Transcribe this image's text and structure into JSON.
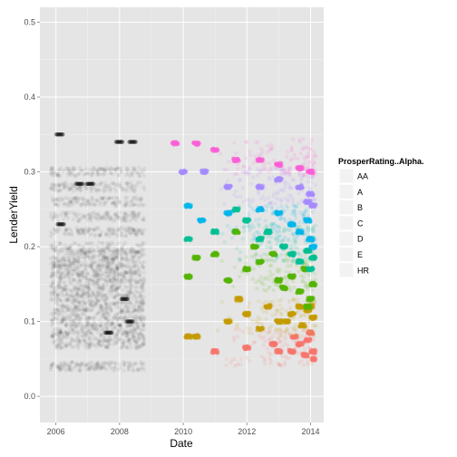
{
  "chart_data": {
    "type": "scatter",
    "xlabel": "Date",
    "ylabel": "LenderYield",
    "x_range": [
      "2005-07-01",
      "2014-06-01"
    ],
    "ylim": [
      -0.035,
      0.52
    ],
    "x_ticks": [
      {
        "value": "2006-01-01",
        "label": "2006"
      },
      {
        "value": "2008-01-01",
        "label": "2008"
      },
      {
        "value": "2010-01-01",
        "label": "2010"
      },
      {
        "value": "2012-01-01",
        "label": "2012"
      },
      {
        "value": "2014-01-01",
        "label": "2014"
      }
    ],
    "y_ticks": [
      {
        "value": 0.0,
        "label": "0.0"
      },
      {
        "value": 0.1,
        "label": "0.1"
      },
      {
        "value": 0.2,
        "label": "0.2"
      },
      {
        "value": 0.3,
        "label": "0.3"
      },
      {
        "value": 0.4,
        "label": "0.4"
      },
      {
        "value": 0.5,
        "label": "0.5"
      }
    ],
    "grid": true,
    "legend": {
      "title": "ProsperRating..Alpha.",
      "placement": "right",
      "entries": [
        "AA",
        "A",
        "B",
        "C",
        "D",
        "E",
        "HR"
      ]
    },
    "series": [
      {
        "rating": "none",
        "color": "#000000",
        "opacity": 0.05,
        "date_range": [
          "2005-11-01",
          "2008-10-15"
        ],
        "yield_levels": [
          0.04,
          0.07,
          0.08,
          0.09,
          0.1,
          0.11,
          0.12,
          0.13,
          0.14,
          0.15,
          0.16,
          0.17,
          0.18,
          0.19,
          0.2,
          0.22,
          0.24,
          0.26,
          0.28,
          0.3
        ],
        "highlights": [
          {
            "x": "2006-10-01",
            "y": 0.284
          },
          {
            "x": "2007-02-01",
            "y": 0.284
          },
          {
            "x": "2008-01-01",
            "y": 0.34
          },
          {
            "x": "2008-06-01",
            "y": 0.34
          },
          {
            "x": "2008-03-01",
            "y": 0.13
          },
          {
            "x": "2008-05-01",
            "y": 0.1
          },
          {
            "x": "2006-02-15",
            "y": 0.35
          },
          {
            "x": "2006-03-01",
            "y": 0.23
          },
          {
            "x": "2007-09-01",
            "y": 0.085
          }
        ]
      },
      {
        "rating": "AA",
        "color": "#f8766d",
        "date_range": [
          "2009-08-01",
          "2014-03-01"
        ],
        "points": [
          {
            "x": "2011-01-01",
            "y": 0.06
          },
          {
            "x": "2012-01-01",
            "y": 0.065
          },
          {
            "x": "2013-01-01",
            "y": 0.06
          },
          {
            "x": "2013-06-01",
            "y": 0.06
          },
          {
            "x": "2013-09-01",
            "y": 0.07
          },
          {
            "x": "2013-12-01",
            "y": 0.075
          },
          {
            "x": "2014-01-01",
            "y": 0.085
          },
          {
            "x": "2014-02-01",
            "y": 0.06
          },
          {
            "x": "2013-11-01",
            "y": 0.055
          },
          {
            "x": "2014-02-15",
            "y": 0.05
          },
          {
            "x": "2013-07-01",
            "y": 0.08
          },
          {
            "x": "2012-11-01",
            "y": 0.07
          }
        ]
      },
      {
        "rating": "A",
        "color": "#c49a00",
        "date_range": [
          "2009-08-01",
          "2014-03-01"
        ],
        "points": [
          {
            "x": "2010-03-01",
            "y": 0.08
          },
          {
            "x": "2010-06-01",
            "y": 0.08
          },
          {
            "x": "2011-06-01",
            "y": 0.1
          },
          {
            "x": "2012-01-01",
            "y": 0.11
          },
          {
            "x": "2012-06-01",
            "y": 0.09
          },
          {
            "x": "2013-01-01",
            "y": 0.1
          },
          {
            "x": "2013-06-01",
            "y": 0.11
          },
          {
            "x": "2013-09-01",
            "y": 0.12
          },
          {
            "x": "2013-12-01",
            "y": 0.115
          },
          {
            "x": "2014-01-01",
            "y": 0.12
          },
          {
            "x": "2014-02-01",
            "y": 0.105
          },
          {
            "x": "2013-10-01",
            "y": 0.095
          },
          {
            "x": "2013-04-01",
            "y": 0.1
          },
          {
            "x": "2012-09-01",
            "y": 0.12
          },
          {
            "x": "2011-10-01",
            "y": 0.13
          }
        ]
      },
      {
        "rating": "B",
        "color": "#53b400",
        "date_range": [
          "2009-08-01",
          "2014-03-01"
        ],
        "points": [
          {
            "x": "2010-03-01",
            "y": 0.16
          },
          {
            "x": "2010-06-01",
            "y": 0.185
          },
          {
            "x": "2011-01-01",
            "y": 0.19
          },
          {
            "x": "2011-06-01",
            "y": 0.155
          },
          {
            "x": "2012-01-01",
            "y": 0.17
          },
          {
            "x": "2012-06-01",
            "y": 0.18
          },
          {
            "x": "2013-01-01",
            "y": 0.155
          },
          {
            "x": "2013-06-01",
            "y": 0.16
          },
          {
            "x": "2013-09-01",
            "y": 0.14
          },
          {
            "x": "2014-01-01",
            "y": 0.13
          },
          {
            "x": "2014-02-01",
            "y": 0.15
          },
          {
            "x": "2013-12-01",
            "y": 0.12
          },
          {
            "x": "2013-11-01",
            "y": 0.17
          },
          {
            "x": "2012-04-01",
            "y": 0.2
          },
          {
            "x": "2011-09-01",
            "y": 0.22
          },
          {
            "x": "2012-11-01",
            "y": 0.19
          },
          {
            "x": "2013-03-01",
            "y": 0.145
          }
        ]
      },
      {
        "rating": "C",
        "color": "#00c094",
        "date_range": [
          "2009-08-01",
          "2014-03-01"
        ],
        "points": [
          {
            "x": "2010-03-01",
            "y": 0.21
          },
          {
            "x": "2011-01-01",
            "y": 0.22
          },
          {
            "x": "2011-09-01",
            "y": 0.25
          },
          {
            "x": "2012-01-01",
            "y": 0.235
          },
          {
            "x": "2012-09-01",
            "y": 0.22
          },
          {
            "x": "2013-03-01",
            "y": 0.2
          },
          {
            "x": "2013-06-01",
            "y": 0.19
          },
          {
            "x": "2013-09-01",
            "y": 0.18
          },
          {
            "x": "2014-01-01",
            "y": 0.17
          },
          {
            "x": "2014-02-01",
            "y": 0.185
          },
          {
            "x": "2013-12-01",
            "y": 0.195
          },
          {
            "x": "2012-06-01",
            "y": 0.21
          }
        ]
      },
      {
        "rating": "D",
        "color": "#00b6eb",
        "date_range": [
          "2009-08-01",
          "2014-03-01"
        ],
        "points": [
          {
            "x": "2010-03-01",
            "y": 0.255
          },
          {
            "x": "2010-08-01",
            "y": 0.235
          },
          {
            "x": "2011-06-01",
            "y": 0.245
          },
          {
            "x": "2012-06-01",
            "y": 0.25
          },
          {
            "x": "2013-01-01",
            "y": 0.245
          },
          {
            "x": "2013-06-01",
            "y": 0.23
          },
          {
            "x": "2013-09-01",
            "y": 0.22
          },
          {
            "x": "2014-01-01",
            "y": 0.21
          },
          {
            "x": "2014-02-01",
            "y": 0.2
          },
          {
            "x": "2013-12-01",
            "y": 0.235
          }
        ]
      },
      {
        "rating": "E",
        "color": "#a58aff",
        "date_range": [
          "2009-08-01",
          "2014-03-01"
        ],
        "points": [
          {
            "x": "2010-01-01",
            "y": 0.3
          },
          {
            "x": "2010-09-01",
            "y": 0.3
          },
          {
            "x": "2011-06-01",
            "y": 0.28
          },
          {
            "x": "2012-06-01",
            "y": 0.28
          },
          {
            "x": "2013-01-01",
            "y": 0.29
          },
          {
            "x": "2013-09-01",
            "y": 0.28
          },
          {
            "x": "2014-01-01",
            "y": 0.27
          },
          {
            "x": "2014-02-01",
            "y": 0.255
          },
          {
            "x": "2013-12-01",
            "y": 0.26
          }
        ]
      },
      {
        "rating": "HR",
        "color": "#fb61d7",
        "date_range": [
          "2009-08-01",
          "2014-03-01"
        ],
        "points": [
          {
            "x": "2009-10-01",
            "y": 0.338
          },
          {
            "x": "2010-06-01",
            "y": 0.338
          },
          {
            "x": "2011-01-01",
            "y": 0.33
          },
          {
            "x": "2011-09-01",
            "y": 0.316
          },
          {
            "x": "2012-06-01",
            "y": 0.316
          },
          {
            "x": "2013-01-01",
            "y": 0.31
          },
          {
            "x": "2013-09-01",
            "y": 0.305
          },
          {
            "x": "2014-01-01",
            "y": 0.3
          }
        ]
      }
    ]
  }
}
